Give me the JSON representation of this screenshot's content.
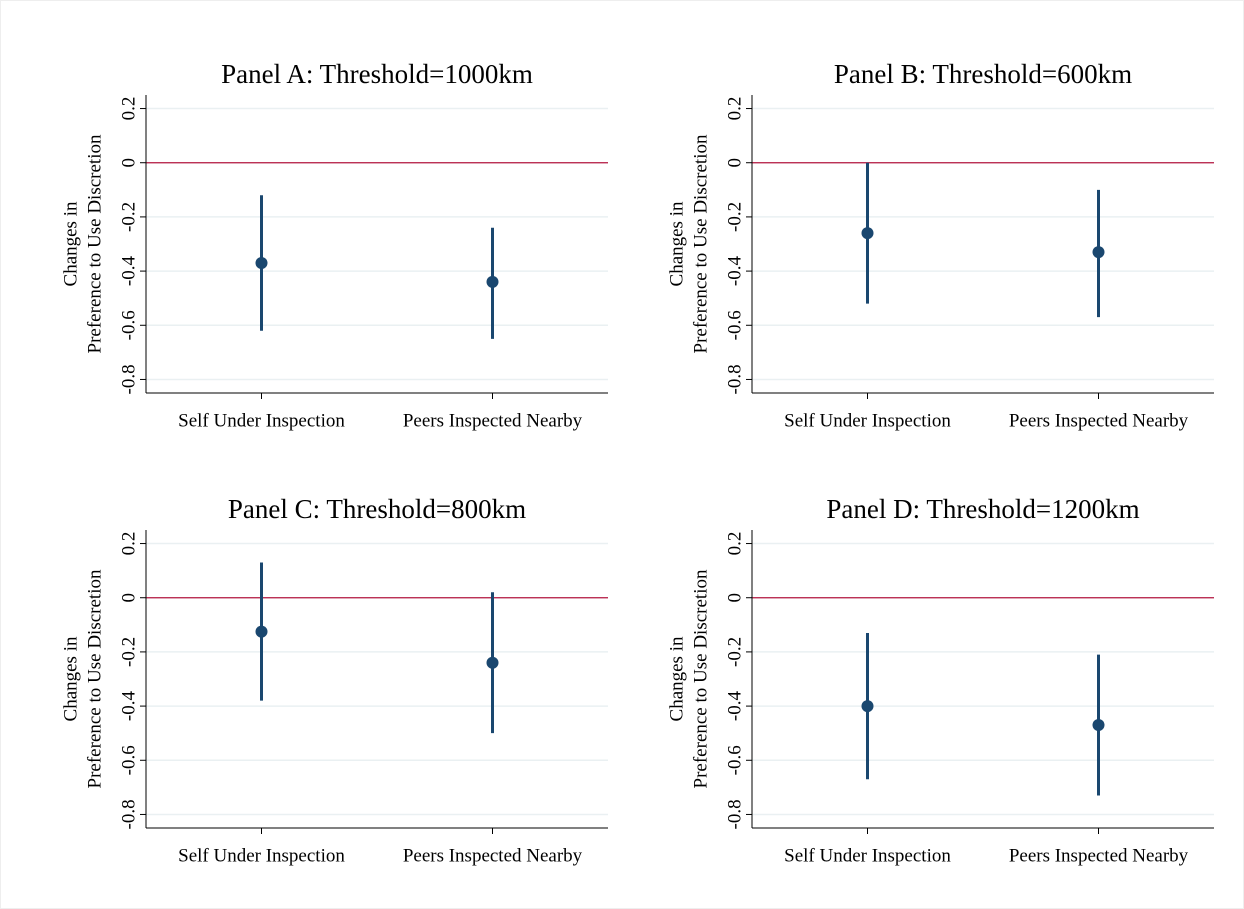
{
  "chart_data": [
    {
      "type": "errorbar",
      "title": "Panel A: Threshold=1000km",
      "ylabel": [
        "Changes in",
        "Preference to Use Discretion"
      ],
      "categories": [
        "Self Under Inspection",
        "Peers Inspected Nearby"
      ],
      "values": [
        -0.37,
        -0.44
      ],
      "lower": [
        -0.62,
        -0.65
      ],
      "upper": [
        -0.12,
        -0.24
      ],
      "color": "#1a476f",
      "ylim": [
        -0.85,
        0.25
      ],
      "yticks": [
        0.2,
        0,
        -0.2,
        -0.4,
        -0.6,
        -0.8
      ],
      "refline": {
        "value": 0,
        "color": "#b5173f"
      },
      "grid": true
    },
    {
      "type": "errorbar",
      "title": "Panel B: Threshold=600km",
      "ylabel": [
        "Changes in",
        "Preference to Use Discretion"
      ],
      "categories": [
        "Self Under Inspection",
        "Peers Inspected Nearby"
      ],
      "values": [
        -0.26,
        -0.33
      ],
      "lower": [
        -0.52,
        -0.57
      ],
      "upper": [
        0.0,
        -0.1
      ],
      "color": "#1a476f",
      "ylim": [
        -0.85,
        0.25
      ],
      "yticks": [
        0.2,
        0,
        -0.2,
        -0.4,
        -0.6,
        -0.8
      ],
      "refline": {
        "value": 0,
        "color": "#b5173f"
      },
      "grid": true
    },
    {
      "type": "errorbar",
      "title": "Panel C: Threshold=800km",
      "ylabel": [
        "Changes in",
        "Preference to Use Discretion"
      ],
      "categories": [
        "Self Under Inspection",
        "Peers Inspected Nearby"
      ],
      "values": [
        -0.125,
        -0.24
      ],
      "lower": [
        -0.38,
        -0.5
      ],
      "upper": [
        0.13,
        0.02
      ],
      "color": "#1a476f",
      "ylim": [
        -0.85,
        0.25
      ],
      "yticks": [
        0.2,
        0,
        -0.2,
        -0.4,
        -0.6,
        -0.8
      ],
      "refline": {
        "value": 0,
        "color": "#b5173f"
      },
      "grid": true
    },
    {
      "type": "errorbar",
      "title": "Panel D: Threshold=1200km",
      "ylabel": [
        "Changes in",
        "Preference to Use Discretion"
      ],
      "categories": [
        "Self Under Inspection",
        "Peers Inspected Nearby"
      ],
      "values": [
        -0.4,
        -0.47
      ],
      "lower": [
        -0.67,
        -0.73
      ],
      "upper": [
        -0.13,
        -0.21
      ],
      "color": "#1a476f",
      "ylim": [
        -0.85,
        0.25
      ],
      "yticks": [
        0.2,
        0,
        -0.2,
        -0.4,
        -0.6,
        -0.8
      ],
      "refline": {
        "value": 0,
        "color": "#b5173f"
      },
      "grid": true
    }
  ]
}
